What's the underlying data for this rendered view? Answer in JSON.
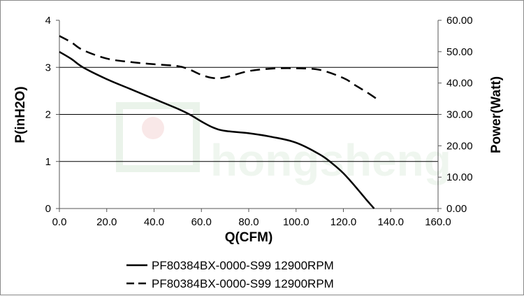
{
  "chart_data": {
    "type": "line",
    "xlabel": "Q(CFM)",
    "ylabel_left": "P(inH2O)",
    "ylabel_right": "Power(Watt)",
    "xlim": [
      0,
      160
    ],
    "ylim_left": [
      0,
      4
    ],
    "ylim_right": [
      0,
      60
    ],
    "x_ticks": [
      "0.0",
      "20.0",
      "40.0",
      "60.0",
      "80.0",
      "100.0",
      "120.0",
      "140.0",
      "160.0"
    ],
    "y_left_ticks": [
      "0",
      "1",
      "2",
      "3",
      "4"
    ],
    "y_right_ticks": [
      "0.00",
      "10.00",
      "20.00",
      "30.00",
      "40.00",
      "50.00",
      "60.00"
    ],
    "grid": "horizontal",
    "series": [
      {
        "name": "PF80384BX-0000-S99 12900RPM",
        "axis": "left",
        "style": "solid",
        "x": [
          0,
          5,
          10,
          20,
          30,
          40,
          50,
          55,
          60,
          65,
          70,
          80,
          90,
          100,
          110,
          115,
          120,
          125,
          130,
          133
        ],
        "y": [
          3.33,
          3.18,
          3.0,
          2.75,
          2.54,
          2.33,
          2.12,
          2.0,
          1.85,
          1.72,
          1.65,
          1.6,
          1.52,
          1.4,
          1.15,
          0.97,
          0.75,
          0.47,
          0.17,
          0.0
        ]
      },
      {
        "name": "PF80384BX-0000-S99 12900RPM",
        "axis": "right",
        "style": "dashed",
        "x": [
          0,
          5,
          10,
          20,
          30,
          40,
          50,
          55,
          60,
          65,
          70,
          80,
          90,
          100,
          110,
          120,
          125,
          130,
          134
        ],
        "y": [
          55.0,
          53.0,
          50.5,
          47.8,
          46.7,
          46.0,
          45.4,
          44.3,
          42.6,
          41.6,
          41.8,
          43.8,
          44.6,
          44.7,
          44.2,
          41.6,
          39.3,
          37.0,
          35.0
        ]
      }
    ]
  },
  "watermark": {
    "text": "hongsheng",
    "color": "#e3efe3"
  },
  "legend": [
    {
      "label": "PF80384BX-0000-S99 12900RPM",
      "style": "solid"
    },
    {
      "label": "PF80384BX-0000-S99 12900RPM",
      "style": "dashed"
    }
  ]
}
